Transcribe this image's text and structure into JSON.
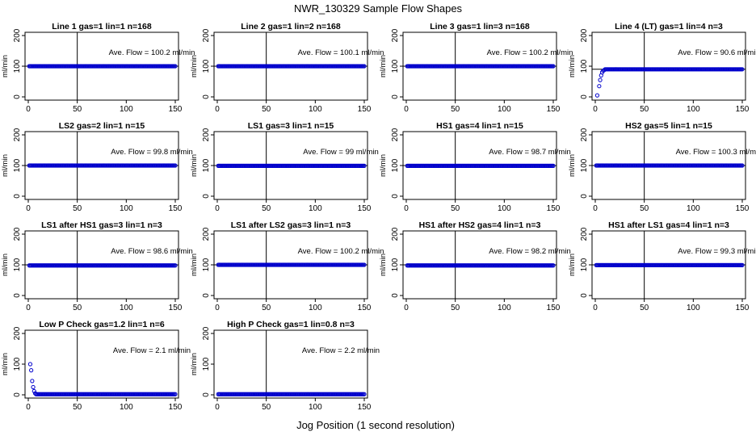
{
  "figure": {
    "title": "NWR_130329  Sample Flow Shapes",
    "xlabel": "Jog Position (1 second resolution)"
  },
  "style": {
    "point_color": "#0000cc",
    "axis_color": "#000000"
  },
  "chart_data": [
    {
      "type": "scatter",
      "title": "Line 1 gas=1 lin=1 n=168",
      "ylabel": "ml/min",
      "annotation": "Ave. Flow =  100.2  ml/min",
      "xlim": [
        0,
        150
      ],
      "ylim": [
        0,
        200
      ],
      "xticks": [
        0,
        50,
        100,
        150
      ],
      "yticks": [
        0,
        100,
        200
      ],
      "vline": 50,
      "hline": 100,
      "series": [
        {
          "shape": "flat",
          "value": 100,
          "x": [
            1,
            150
          ]
        }
      ]
    },
    {
      "type": "scatter",
      "title": "Line 2 gas=1 lin=2 n=168",
      "ylabel": "ml/min",
      "annotation": "Ave. Flow =  100.1  ml/min",
      "xlim": [
        0,
        150
      ],
      "ylim": [
        0,
        200
      ],
      "xticks": [
        0,
        50,
        100,
        150
      ],
      "yticks": [
        0,
        100,
        200
      ],
      "vline": 50,
      "hline": 100,
      "series": [
        {
          "shape": "flat",
          "value": 100,
          "x": [
            1,
            150
          ]
        }
      ]
    },
    {
      "type": "scatter",
      "title": "Line 3 gas=1 lin=3 n=168",
      "ylabel": "ml/min",
      "annotation": "Ave. Flow =  100.2  ml/min",
      "xlim": [
        0,
        150
      ],
      "ylim": [
        0,
        200
      ],
      "xticks": [
        0,
        50,
        100,
        150
      ],
      "yticks": [
        0,
        100,
        200
      ],
      "vline": 50,
      "hline": 100,
      "series": [
        {
          "shape": "flat",
          "value": 100,
          "x": [
            1,
            150
          ]
        }
      ]
    },
    {
      "type": "scatter",
      "title": "Line 4 (LT) gas=1 lin=4 n=3",
      "ylabel": "ml/min",
      "annotation": "Ave. Flow =  90.6  ml/min",
      "xlim": [
        0,
        150
      ],
      "ylim": [
        0,
        200
      ],
      "xticks": [
        0,
        50,
        100,
        150
      ],
      "yticks": [
        0,
        100,
        200
      ],
      "vline": 50,
      "hline": 90,
      "series": [
        {
          "shape": "rise",
          "value": 90,
          "x": [
            1,
            150
          ],
          "head": [
            [
              2,
              5
            ],
            [
              4,
              35
            ],
            [
              5,
              55
            ],
            [
              6,
              70
            ],
            [
              7,
              80
            ],
            [
              8,
              85
            ],
            [
              9,
              87
            ]
          ]
        }
      ]
    },
    {
      "type": "scatter",
      "title": "LS2 gas=2 lin=1 n=15",
      "ylabel": "ml/min",
      "annotation": "Ave. Flow =  99.8  ml/min",
      "xlim": [
        0,
        150
      ],
      "ylim": [
        0,
        200
      ],
      "xticks": [
        0,
        50,
        100,
        150
      ],
      "yticks": [
        0,
        100,
        200
      ],
      "vline": 50,
      "hline": 100,
      "series": [
        {
          "shape": "flat",
          "value": 100,
          "x": [
            1,
            150
          ]
        }
      ]
    },
    {
      "type": "scatter",
      "title": "LS1 gas=3 lin=1 n=15",
      "ylabel": "ml/min",
      "annotation": "Ave. Flow =  99  ml/min",
      "xlim": [
        0,
        150
      ],
      "ylim": [
        0,
        200
      ],
      "xticks": [
        0,
        50,
        100,
        150
      ],
      "yticks": [
        0,
        100,
        200
      ],
      "vline": 50,
      "hline": 100,
      "series": [
        {
          "shape": "flat",
          "value": 99,
          "x": [
            1,
            150
          ]
        }
      ]
    },
    {
      "type": "scatter",
      "title": "HS1 gas=4 lin=1 n=15",
      "ylabel": "ml/min",
      "annotation": "Ave. Flow =  98.7  ml/min",
      "xlim": [
        0,
        150
      ],
      "ylim": [
        0,
        200
      ],
      "xticks": [
        0,
        50,
        100,
        150
      ],
      "yticks": [
        0,
        100,
        200
      ],
      "vline": 50,
      "hline": 100,
      "series": [
        {
          "shape": "flat",
          "value": 99,
          "x": [
            1,
            150
          ]
        }
      ]
    },
    {
      "type": "scatter",
      "title": "HS2 gas=5 lin=1 n=15",
      "ylabel": "ml/min",
      "annotation": "Ave. Flow =  100.3  ml/min",
      "xlim": [
        0,
        150
      ],
      "ylim": [
        0,
        200
      ],
      "xticks": [
        0,
        50,
        100,
        150
      ],
      "yticks": [
        0,
        100,
        200
      ],
      "vline": 50,
      "hline": 100,
      "series": [
        {
          "shape": "flat",
          "value": 100,
          "x": [
            1,
            150
          ]
        }
      ]
    },
    {
      "type": "scatter",
      "title": "LS1 after HS1 gas=3 lin=1 n=3",
      "ylabel": "ml/min",
      "annotation": "Ave. Flow =  98.6  ml/min",
      "xlim": [
        0,
        150
      ],
      "ylim": [
        0,
        200
      ],
      "xticks": [
        0,
        50,
        100,
        150
      ],
      "yticks": [
        0,
        100,
        200
      ],
      "vline": 50,
      "hline": 100,
      "series": [
        {
          "shape": "flat",
          "value": 98,
          "x": [
            1,
            150
          ]
        }
      ]
    },
    {
      "type": "scatter",
      "title": "LS1 after LS2 gas=3 lin=1 n=3",
      "ylabel": "ml/min",
      "annotation": "Ave. Flow =  100.2  ml/min",
      "xlim": [
        0,
        150
      ],
      "ylim": [
        0,
        200
      ],
      "xticks": [
        0,
        50,
        100,
        150
      ],
      "yticks": [
        0,
        100,
        200
      ],
      "vline": 50,
      "hline": 100,
      "series": [
        {
          "shape": "flat",
          "value": 100,
          "x": [
            1,
            150
          ]
        }
      ]
    },
    {
      "type": "scatter",
      "title": "HS1 after HS2 gas=4 lin=1 n=3",
      "ylabel": "ml/min",
      "annotation": "Ave. Flow =  98.2  ml/min",
      "xlim": [
        0,
        150
      ],
      "ylim": [
        0,
        200
      ],
      "xticks": [
        0,
        50,
        100,
        150
      ],
      "yticks": [
        0,
        100,
        200
      ],
      "vline": 50,
      "hline": 100,
      "series": [
        {
          "shape": "flat",
          "value": 98,
          "x": [
            1,
            150
          ]
        }
      ]
    },
    {
      "type": "scatter",
      "title": "HS1 after LS1 gas=4 lin=1 n=3",
      "ylabel": "ml/min",
      "annotation": "Ave. Flow =  99.3  ml/min",
      "xlim": [
        0,
        150
      ],
      "ylim": [
        0,
        200
      ],
      "xticks": [
        0,
        50,
        100,
        150
      ],
      "yticks": [
        0,
        100,
        200
      ],
      "vline": 50,
      "hline": 100,
      "series": [
        {
          "shape": "flat",
          "value": 99,
          "x": [
            1,
            150
          ]
        }
      ]
    },
    {
      "type": "scatter",
      "title": "Low P Check gas=1.2 lin=1 n=6",
      "ylabel": "ml/min",
      "annotation": "Ave. Flow =  2.1  ml/min",
      "xlim": [
        0,
        150
      ],
      "ylim": [
        0,
        200
      ],
      "xticks": [
        0,
        50,
        100,
        150
      ],
      "yticks": [
        0,
        100,
        200
      ],
      "vline": 50,
      "hline": null,
      "series": [
        {
          "shape": "decay",
          "value": 2,
          "x": [
            1,
            150
          ],
          "head": [
            [
              2,
              100
            ],
            [
              3,
              80
            ],
            [
              4,
              45
            ],
            [
              5,
              25
            ],
            [
              6,
              12
            ],
            [
              7,
              5
            ]
          ]
        }
      ]
    },
    {
      "type": "scatter",
      "title": "High P Check gas=1 lin=0.8 n=3",
      "ylabel": "ml/min",
      "annotation": "Ave. Flow =  2.2  ml/min",
      "xlim": [
        0,
        150
      ],
      "ylim": [
        0,
        200
      ],
      "xticks": [
        0,
        50,
        100,
        150
      ],
      "yticks": [
        0,
        100,
        200
      ],
      "vline": 50,
      "hline": null,
      "series": [
        {
          "shape": "flat",
          "value": 2,
          "x": [
            1,
            150
          ]
        }
      ]
    }
  ]
}
